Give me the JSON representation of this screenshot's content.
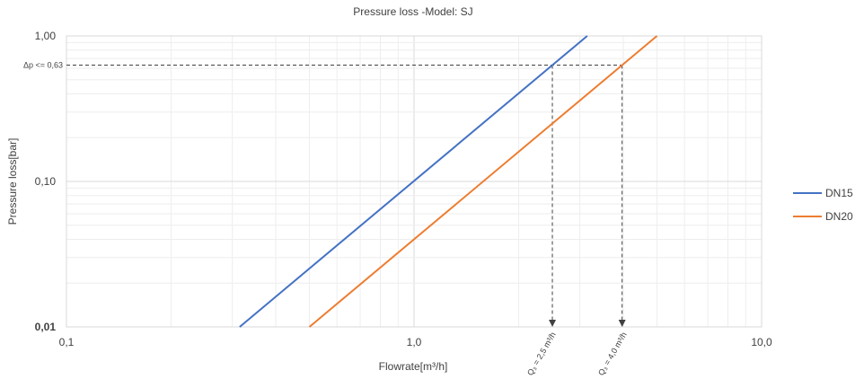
{
  "chart_data": {
    "type": "line",
    "title": "Pressure loss -Model: SJ",
    "xlabel": "Flowrate[m³/h]",
    "ylabel": "Pressure loss[bar]",
    "x_scale": "log",
    "y_scale": "log",
    "xlim": [
      0.1,
      10.0
    ],
    "ylim": [
      0.01,
      1.0
    ],
    "x_ticks": [
      {
        "value": 0.1,
        "label": "0,1"
      },
      {
        "value": 1.0,
        "label": "1,0"
      },
      {
        "value": 10.0,
        "label": "10,0"
      }
    ],
    "y_ticks": [
      {
        "value": 0.01,
        "label": "0,01"
      },
      {
        "value": 0.1,
        "label": "0,10"
      },
      {
        "value": 1.0,
        "label": "1,00"
      }
    ],
    "grid": "major and minor (log)",
    "legend_position": "right",
    "series": [
      {
        "name": "DN15",
        "color": "#4472C4",
        "x": [
          0.315,
          3.15
        ],
        "y": [
          0.01,
          1.0
        ]
      },
      {
        "name": "DN20",
        "color": "#ED7D31",
        "x": [
          0.5,
          5.0
        ],
        "y": [
          0.01,
          1.0
        ]
      }
    ],
    "reference_line": {
      "y": 0.63,
      "label": "Δp <= 0,63"
    },
    "annotations": [
      {
        "x": 2.5,
        "label": "Q₃ = 2,5 m³/h"
      },
      {
        "x": 4.0,
        "label": "Q₃ = 4,0 m³/h"
      }
    ]
  }
}
